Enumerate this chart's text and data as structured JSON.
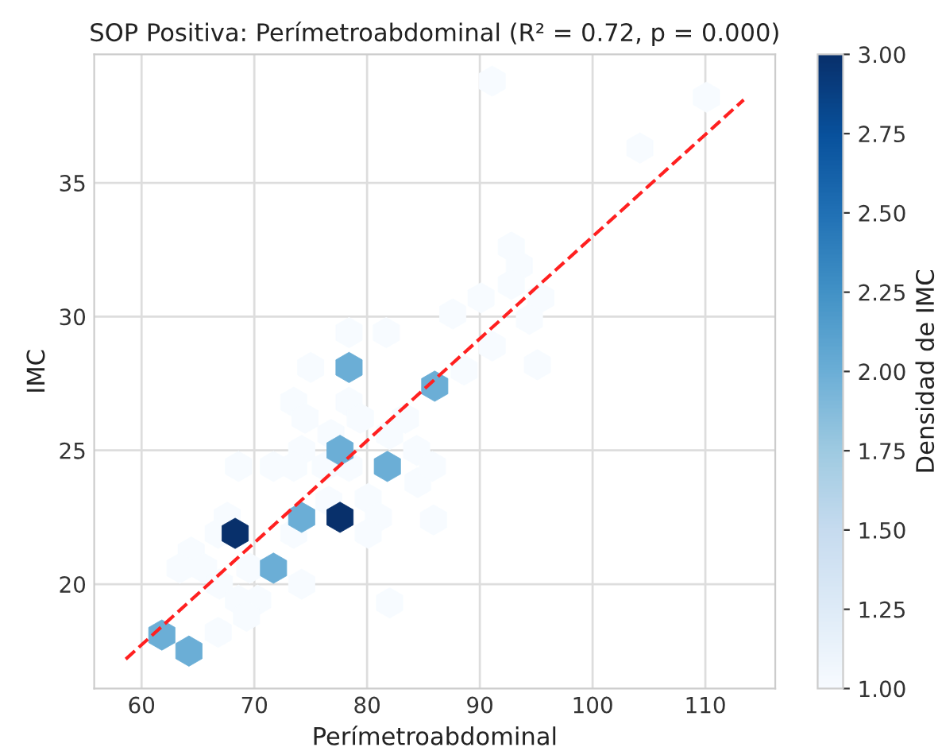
{
  "chart_data": {
    "type": "scatter",
    "title": "SOP Positiva: Perímetroabdominal (R² = 0.72, p = 0.000)",
    "xlabel": "Perímetroabdominal",
    "ylabel": "IMC",
    "clabel": "Densidad de IMC",
    "xlim": [
      55.8,
      116.2
    ],
    "ylim": [
      16.1,
      39.8
    ],
    "xticks": [
      60,
      70,
      80,
      90,
      100,
      110
    ],
    "yticks": [
      20,
      25,
      30,
      35
    ],
    "clim": [
      1,
      3
    ],
    "cticks": [
      {
        "value": 1,
        "label": "1.00"
      },
      {
        "value": 1.25,
        "label": "1.25"
      },
      {
        "value": 1.5,
        "label": "1.50"
      },
      {
        "value": 1.75,
        "label": "1.75"
      },
      {
        "value": 2,
        "label": "2.00"
      },
      {
        "value": 2.25,
        "label": "2.25"
      },
      {
        "value": 2.5,
        "label": "2.50"
      },
      {
        "value": 2.75,
        "label": "2.75"
      },
      {
        "value": 3,
        "label": "3.00"
      }
    ],
    "grid": true,
    "series": [
      {
        "x": [
          75.0,
          73.5,
          74.5,
          78.4,
          79.4,
          76.8,
          82.0,
          74.2,
          68.6,
          71.7,
          73.5,
          76.3,
          78.4,
          84.4,
          84.5,
          80.1,
          81.0,
          76.6,
          67.6,
          66.8,
          73.5,
          80.1,
          64.4,
          63.4,
          65.5,
          69.6,
          66.9,
          74.2,
          68.6,
          70.3,
          69.3,
          82.0,
          66.8,
          85.9,
          91.1,
          110.1,
          104.2,
          92.8,
          93.5,
          92.8,
          95.4,
          90.1,
          87.6,
          94.4,
          91.1,
          95.1,
          88.6,
          78.4,
          81.7,
          85.8,
          83.4,
          61.8,
          64.2,
          71.7,
          74.2,
          77.6,
          78.4,
          81.8,
          86.0,
          68.3,
          77.6
        ],
        "values": [
          28.1,
          26.8,
          26.2,
          26.8,
          26.2,
          25.6,
          25.6,
          25.0,
          24.4,
          24.4,
          24.4,
          24.4,
          24.4,
          25.0,
          23.8,
          23.2,
          22.5,
          23.1,
          22.5,
          21.9,
          21.9,
          21.9,
          21.2,
          20.6,
          20.6,
          20.6,
          20.0,
          20.0,
          19.4,
          19.4,
          18.8,
          19.3,
          18.2,
          22.4,
          38.8,
          38.2,
          36.3,
          32.6,
          31.9,
          31.2,
          30.7,
          30.7,
          30.1,
          29.9,
          28.9,
          28.2,
          28.0,
          29.4,
          29.4,
          24.4,
          26.2,
          18.1,
          17.5,
          20.6,
          22.5,
          25.0,
          28.1,
          24.4,
          27.4,
          21.9,
          22.5
        ],
        "colors": [
          "#f7fbff",
          "#f7fbff",
          "#f7fbff",
          "#f7fbff",
          "#f7fbff",
          "#f7fbff",
          "#f7fbff",
          "#f7fbff",
          "#f7fbff",
          "#f7fbff",
          "#f7fbff",
          "#f7fbff",
          "#f7fbff",
          "#f7fbff",
          "#f7fbff",
          "#f7fbff",
          "#f7fbff",
          "#f7fbff",
          "#f7fbff",
          "#f7fbff",
          "#f7fbff",
          "#f7fbff",
          "#f7fbff",
          "#f7fbff",
          "#f7fbff",
          "#f7fbff",
          "#f7fbff",
          "#f7fbff",
          "#f7fbff",
          "#f7fbff",
          "#f7fbff",
          "#f7fbff",
          "#f7fbff",
          "#f7fbff",
          "#f7fbff",
          "#f7fbff",
          "#f7fbff",
          "#f7fbff",
          "#f7fbff",
          "#f7fbff",
          "#f7fbff",
          "#f7fbff",
          "#f7fbff",
          "#f7fbff",
          "#f7fbff",
          "#f7fbff",
          "#f7fbff",
          "#f7fbff",
          "#f7fbff",
          "#f7fbff",
          "#f7fbff",
          "#6baed6",
          "#6baed6",
          "#6baed6",
          "#6baed6",
          "#6baed6",
          "#6baed6",
          "#6baed6",
          "#6baed6",
          "#08306b",
          "#08306b"
        ]
      },
      {
        "type": "line",
        "color": "#ff2020",
        "line_style": "dashed",
        "x": [
          58.6,
          113.4
        ],
        "values": [
          17.2,
          38.1
        ]
      }
    ]
  }
}
